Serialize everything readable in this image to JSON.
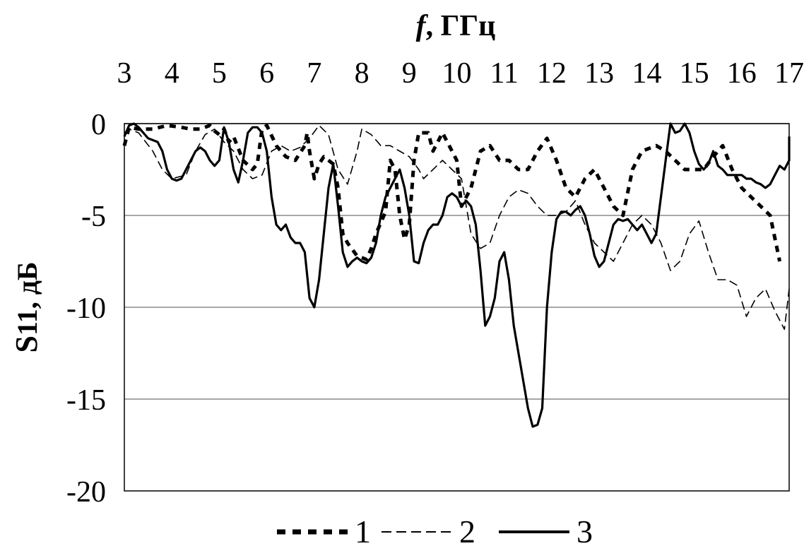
{
  "chart_data": {
    "type": "line",
    "xlabel_italic": "f",
    "xlabel_rest": ", ГГц",
    "ylabel_main": "S",
    "ylabel_rest": "11, дБ",
    "x_ticks": [
      "3",
      "4",
      "5",
      "6",
      "7",
      "8",
      "9",
      "10",
      "11",
      "12",
      "13",
      "14",
      "15",
      "16",
      "17"
    ],
    "y_ticks": [
      "0",
      "-5",
      "-10",
      "-15",
      "-20"
    ],
    "xlim": [
      3,
      17
    ],
    "ylim": [
      -20,
      0
    ],
    "x_axis_position": "top",
    "grid": "horizontal",
    "legend_position": "bottom-center",
    "series": [
      {
        "name": "1",
        "style": "dotted",
        "points": [
          [
            3.0,
            -1.2
          ],
          [
            3.1,
            -0.2
          ],
          [
            3.3,
            -0.3
          ],
          [
            3.6,
            -0.3
          ],
          [
            3.9,
            -0.1
          ],
          [
            4.2,
            -0.2
          ],
          [
            4.4,
            -0.3
          ],
          [
            4.6,
            -0.3
          ],
          [
            4.8,
            -0.1
          ],
          [
            4.9,
            -0.4
          ],
          [
            5.0,
            -0.6
          ],
          [
            5.1,
            -0.3
          ],
          [
            5.2,
            -1.0
          ],
          [
            5.3,
            -0.7
          ],
          [
            5.5,
            -2.0
          ],
          [
            5.7,
            -2.5
          ],
          [
            5.8,
            -2.2
          ],
          [
            5.9,
            -0.3
          ],
          [
            6.0,
            -0.1
          ],
          [
            6.2,
            -1.2
          ],
          [
            6.4,
            -1.8
          ],
          [
            6.6,
            -2.0
          ],
          [
            6.8,
            -1.2
          ],
          [
            6.85,
            -0.5
          ],
          [
            6.9,
            -1.5
          ],
          [
            7.0,
            -3.0
          ],
          [
            7.1,
            -2.2
          ],
          [
            7.2,
            -1.8
          ],
          [
            7.4,
            -2.2
          ],
          [
            7.5,
            -3.5
          ],
          [
            7.6,
            -6.0
          ],
          [
            7.7,
            -6.5
          ],
          [
            7.9,
            -7.2
          ],
          [
            8.1,
            -7.4
          ],
          [
            8.2,
            -6.8
          ],
          [
            8.3,
            -6.0
          ],
          [
            8.5,
            -4.8
          ],
          [
            8.6,
            -2.0
          ],
          [
            8.7,
            -2.5
          ],
          [
            8.8,
            -5.0
          ],
          [
            8.9,
            -6.3
          ],
          [
            9.0,
            -5.5
          ],
          [
            9.1,
            -2.0
          ],
          [
            9.2,
            -0.5
          ],
          [
            9.4,
            -0.5
          ],
          [
            9.5,
            -1.5
          ],
          [
            9.7,
            -0.5
          ],
          [
            9.8,
            -1.0
          ],
          [
            10.0,
            -2.0
          ],
          [
            10.1,
            -4.5
          ],
          [
            10.3,
            -3.5
          ],
          [
            10.5,
            -1.5
          ],
          [
            10.7,
            -1.2
          ],
          [
            10.9,
            -2.0
          ],
          [
            11.1,
            -2.0
          ],
          [
            11.3,
            -2.5
          ],
          [
            11.5,
            -2.5
          ],
          [
            11.7,
            -1.5
          ],
          [
            11.9,
            -0.8
          ],
          [
            12.1,
            -2.0
          ],
          [
            12.3,
            -3.5
          ],
          [
            12.5,
            -4.0
          ],
          [
            12.7,
            -3.0
          ],
          [
            12.9,
            -2.5
          ],
          [
            13.1,
            -3.5
          ],
          [
            13.3,
            -4.5
          ],
          [
            13.5,
            -5.0
          ],
          [
            13.7,
            -2.5
          ],
          [
            13.9,
            -1.5
          ],
          [
            14.2,
            -1.2
          ],
          [
            14.4,
            -1.5
          ],
          [
            14.6,
            -2.0
          ],
          [
            14.8,
            -2.5
          ],
          [
            15.0,
            -2.5
          ],
          [
            15.2,
            -2.5
          ],
          [
            15.4,
            -1.8
          ],
          [
            15.6,
            -1.2
          ],
          [
            15.8,
            -2.5
          ],
          [
            16.0,
            -3.5
          ],
          [
            16.2,
            -4.0
          ],
          [
            16.4,
            -4.5
          ],
          [
            16.6,
            -5.0
          ],
          [
            16.8,
            -7.5
          ]
        ]
      },
      {
        "name": "2",
        "style": "dashed",
        "points": [
          [
            3.0,
            -0.5
          ],
          [
            3.1,
            -0.3
          ],
          [
            3.3,
            -0.5
          ],
          [
            3.6,
            -1.5
          ],
          [
            3.8,
            -2.5
          ],
          [
            4.0,
            -3.0
          ],
          [
            4.3,
            -2.8
          ],
          [
            4.5,
            -1.5
          ],
          [
            4.7,
            -0.6
          ],
          [
            4.9,
            -0.3
          ],
          [
            5.1,
            -1.0
          ],
          [
            5.3,
            -1.5
          ],
          [
            5.5,
            -2.5
          ],
          [
            5.7,
            -3.0
          ],
          [
            5.9,
            -2.8
          ],
          [
            6.1,
            -1.5
          ],
          [
            6.3,
            -1.2
          ],
          [
            6.5,
            -1.5
          ],
          [
            6.7,
            -1.3
          ],
          [
            6.9,
            -0.8
          ],
          [
            7.1,
            -0.1
          ],
          [
            7.3,
            -0.6
          ],
          [
            7.5,
            -2.5
          ],
          [
            7.7,
            -3.3
          ],
          [
            7.9,
            -1.5
          ],
          [
            8.0,
            -0.3
          ],
          [
            8.2,
            -0.6
          ],
          [
            8.4,
            -1.2
          ],
          [
            8.6,
            -1.2
          ],
          [
            8.8,
            -1.5
          ],
          [
            9.0,
            -1.8
          ],
          [
            9.2,
            -2.5
          ],
          [
            9.3,
            -3.0
          ],
          [
            9.5,
            -2.5
          ],
          [
            9.7,
            -2.0
          ],
          [
            9.9,
            -2.5
          ],
          [
            10.1,
            -3.0
          ],
          [
            10.3,
            -6.0
          ],
          [
            10.5,
            -6.8
          ],
          [
            10.7,
            -6.5
          ],
          [
            10.9,
            -5.0
          ],
          [
            11.1,
            -4.0
          ],
          [
            11.3,
            -3.6
          ],
          [
            11.5,
            -3.8
          ],
          [
            11.7,
            -4.5
          ],
          [
            11.9,
            -5.0
          ],
          [
            12.1,
            -5.0
          ],
          [
            12.3,
            -4.8
          ],
          [
            12.5,
            -4.2
          ],
          [
            12.7,
            -5.5
          ],
          [
            12.9,
            -6.5
          ],
          [
            13.1,
            -7.0
          ],
          [
            13.3,
            -7.5
          ],
          [
            13.5,
            -6.5
          ],
          [
            13.7,
            -5.5
          ],
          [
            13.9,
            -5.0
          ],
          [
            14.1,
            -5.5
          ],
          [
            14.3,
            -6.5
          ],
          [
            14.5,
            -8.0
          ],
          [
            14.7,
            -7.5
          ],
          [
            14.9,
            -6.0
          ],
          [
            15.1,
            -5.3
          ],
          [
            15.3,
            -7.0
          ],
          [
            15.5,
            -8.5
          ],
          [
            15.7,
            -8.5
          ],
          [
            15.9,
            -8.8
          ],
          [
            16.1,
            -10.5
          ],
          [
            16.3,
            -9.5
          ],
          [
            16.5,
            -9.0
          ],
          [
            16.7,
            -10.2
          ],
          [
            16.9,
            -11.2
          ],
          [
            17.0,
            -9.0
          ]
        ]
      },
      {
        "name": "3",
        "style": "solid",
        "points": [
          [
            3.0,
            -0.7
          ],
          [
            3.1,
            -0.1
          ],
          [
            3.2,
            0.0
          ],
          [
            3.3,
            -0.2
          ],
          [
            3.4,
            -0.5
          ],
          [
            3.5,
            -0.8
          ],
          [
            3.6,
            -0.9
          ],
          [
            3.7,
            -1.0
          ],
          [
            3.8,
            -1.5
          ],
          [
            3.9,
            -2.5
          ],
          [
            4.0,
            -3.0
          ],
          [
            4.1,
            -3.1
          ],
          [
            4.2,
            -3.0
          ],
          [
            4.3,
            -2.5
          ],
          [
            4.4,
            -2.0
          ],
          [
            4.5,
            -1.5
          ],
          [
            4.6,
            -1.3
          ],
          [
            4.7,
            -1.5
          ],
          [
            4.8,
            -2.0
          ],
          [
            4.9,
            -2.3
          ],
          [
            5.0,
            -2.0
          ],
          [
            5.1,
            -0.2
          ],
          [
            5.2,
            -1.0
          ],
          [
            5.3,
            -2.5
          ],
          [
            5.4,
            -3.2
          ],
          [
            5.5,
            -2.0
          ],
          [
            5.6,
            -0.5
          ],
          [
            5.7,
            -0.2
          ],
          [
            5.8,
            -0.2
          ],
          [
            5.9,
            -0.5
          ],
          [
            6.0,
            -1.5
          ],
          [
            6.1,
            -4.0
          ],
          [
            6.2,
            -5.5
          ],
          [
            6.3,
            -5.8
          ],
          [
            6.4,
            -5.5
          ],
          [
            6.5,
            -6.2
          ],
          [
            6.6,
            -6.5
          ],
          [
            6.7,
            -6.5
          ],
          [
            6.8,
            -7.0
          ],
          [
            6.9,
            -9.5
          ],
          [
            7.0,
            -10.0
          ],
          [
            7.1,
            -8.5
          ],
          [
            7.2,
            -6.0
          ],
          [
            7.3,
            -3.5
          ],
          [
            7.4,
            -2.2
          ],
          [
            7.5,
            -4.5
          ],
          [
            7.6,
            -7.0
          ],
          [
            7.7,
            -7.8
          ],
          [
            7.8,
            -7.5
          ],
          [
            7.9,
            -7.3
          ],
          [
            8.0,
            -7.5
          ],
          [
            8.1,
            -7.6
          ],
          [
            8.2,
            -7.3
          ],
          [
            8.3,
            -6.5
          ],
          [
            8.4,
            -5.0
          ],
          [
            8.5,
            -4.0
          ],
          [
            8.6,
            -3.5
          ],
          [
            8.7,
            -3.0
          ],
          [
            8.8,
            -2.5
          ],
          [
            8.9,
            -3.5
          ],
          [
            9.0,
            -5.0
          ],
          [
            9.1,
            -7.5
          ],
          [
            9.2,
            -7.6
          ],
          [
            9.3,
            -6.5
          ],
          [
            9.4,
            -5.8
          ],
          [
            9.5,
            -5.5
          ],
          [
            9.6,
            -5.5
          ],
          [
            9.7,
            -5.0
          ],
          [
            9.8,
            -4.0
          ],
          [
            9.9,
            -3.8
          ],
          [
            10.0,
            -4.0
          ],
          [
            10.1,
            -4.5
          ],
          [
            10.2,
            -4.2
          ],
          [
            10.3,
            -4.5
          ],
          [
            10.4,
            -5.5
          ],
          [
            10.5,
            -8.0
          ],
          [
            10.6,
            -11.0
          ],
          [
            10.7,
            -10.5
          ],
          [
            10.8,
            -9.5
          ],
          [
            10.9,
            -7.5
          ],
          [
            11.0,
            -7.0
          ],
          [
            11.1,
            -8.5
          ],
          [
            11.2,
            -11.0
          ],
          [
            11.3,
            -12.5
          ],
          [
            11.4,
            -14.0
          ],
          [
            11.5,
            -15.5
          ],
          [
            11.6,
            -16.5
          ],
          [
            11.7,
            -16.4
          ],
          [
            11.8,
            -15.5
          ],
          [
            11.9,
            -10.0
          ],
          [
            12.0,
            -7.0
          ],
          [
            12.1,
            -5.2
          ],
          [
            12.2,
            -4.8
          ],
          [
            12.3,
            -4.8
          ],
          [
            12.4,
            -5.0
          ],
          [
            12.5,
            -4.7
          ],
          [
            12.6,
            -4.5
          ],
          [
            12.7,
            -5.0
          ],
          [
            12.8,
            -6.0
          ],
          [
            12.9,
            -7.2
          ],
          [
            13.0,
            -7.8
          ],
          [
            13.1,
            -7.5
          ],
          [
            13.2,
            -6.5
          ],
          [
            13.3,
            -5.5
          ],
          [
            13.4,
            -5.2
          ],
          [
            13.5,
            -5.3
          ],
          [
            13.6,
            -5.2
          ],
          [
            13.7,
            -5.5
          ],
          [
            13.8,
            -5.8
          ],
          [
            13.9,
            -5.5
          ],
          [
            14.0,
            -6.0
          ],
          [
            14.1,
            -6.5
          ],
          [
            14.2,
            -6.0
          ],
          [
            14.3,
            -4.0
          ],
          [
            14.4,
            -2.0
          ],
          [
            14.5,
            0.0
          ],
          [
            14.6,
            -0.5
          ],
          [
            14.7,
            -0.4
          ],
          [
            14.8,
            0.0
          ],
          [
            14.9,
            -0.5
          ],
          [
            15.0,
            -1.5
          ],
          [
            15.1,
            -2.2
          ],
          [
            15.2,
            -2.5
          ],
          [
            15.3,
            -2.2
          ],
          [
            15.4,
            -1.5
          ],
          [
            15.5,
            -2.3
          ],
          [
            15.6,
            -2.5
          ],
          [
            15.7,
            -2.8
          ],
          [
            15.8,
            -2.8
          ],
          [
            16.0,
            -2.8
          ],
          [
            16.1,
            -3.0
          ],
          [
            16.2,
            -3.0
          ],
          [
            16.3,
            -3.2
          ],
          [
            16.4,
            -3.3
          ],
          [
            16.5,
            -3.5
          ],
          [
            16.6,
            -3.3
          ],
          [
            16.7,
            -2.8
          ],
          [
            16.8,
            -2.3
          ],
          [
            16.9,
            -2.5
          ],
          [
            17.0,
            -2.0
          ],
          [
            17.1,
            -0.7
          ]
        ]
      }
    ]
  }
}
